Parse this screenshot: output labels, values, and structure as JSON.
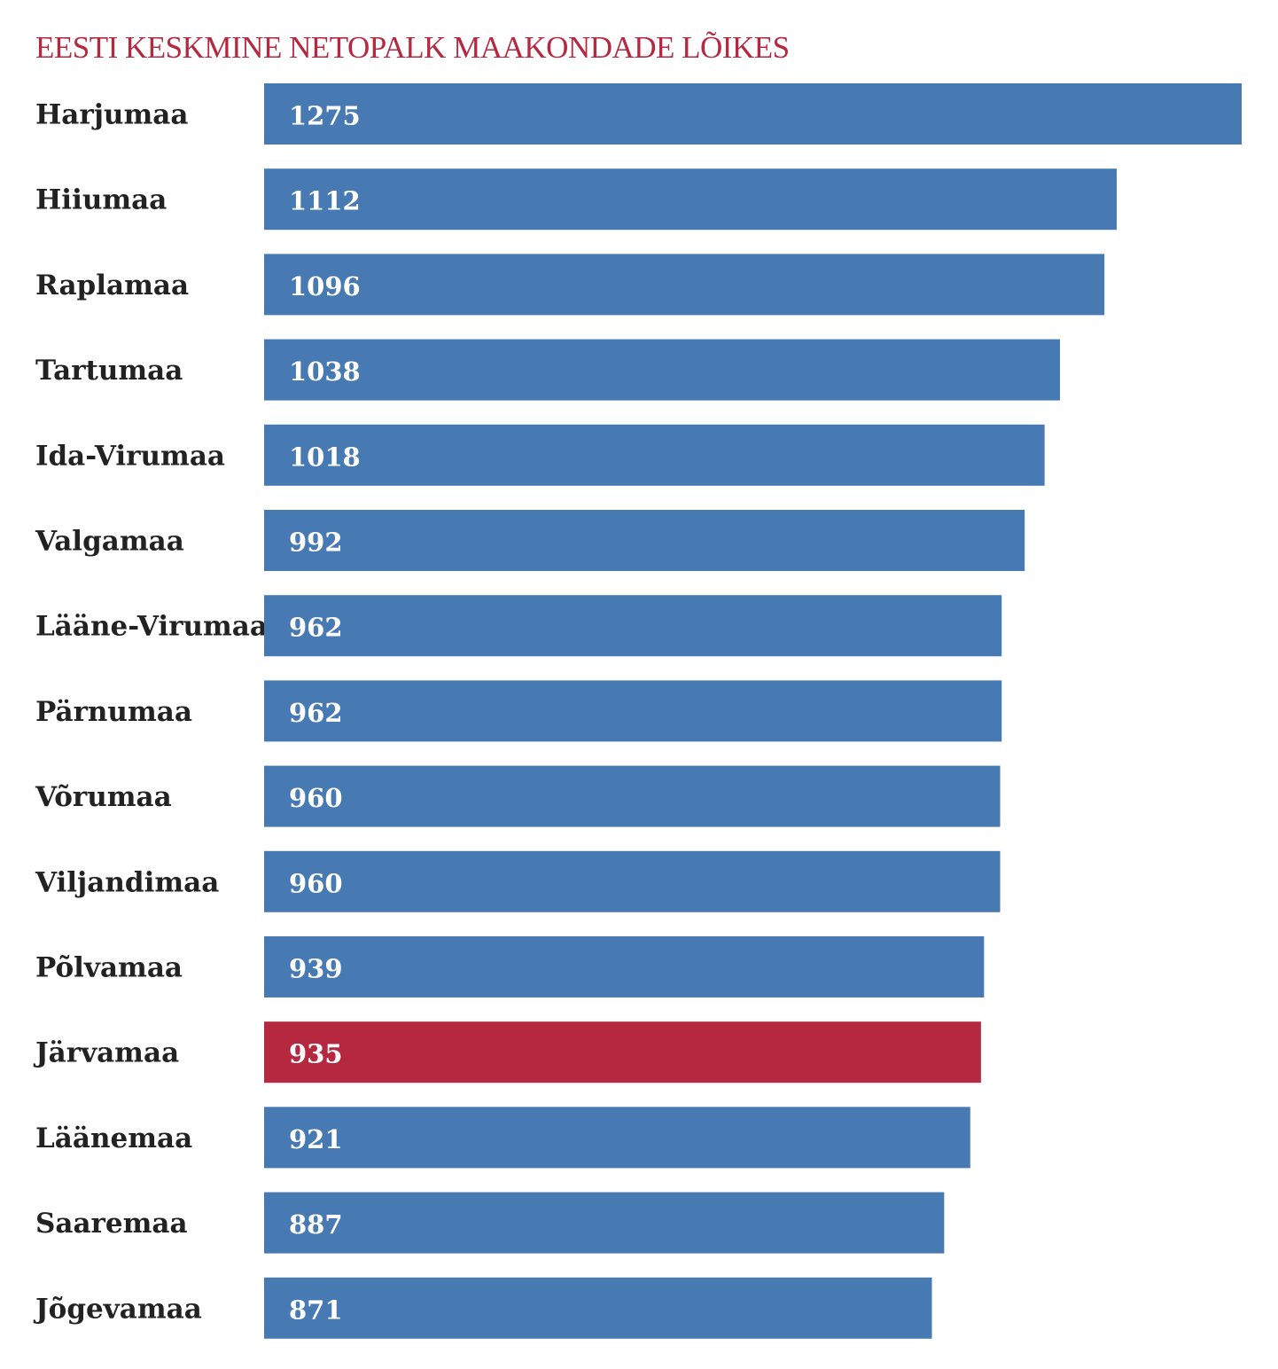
{
  "chart_data": {
    "type": "bar",
    "orientation": "horizontal",
    "title": "EESTI KESKMINE NETOPALK MAAKONDADE LÕIKES",
    "categories": [
      "Harjumaa",
      "Hiiumaa",
      "Raplamaa",
      "Tartumaa",
      "Ida-Virumaa",
      "Valgamaa",
      "Lääne-Virumaa",
      "Pärnumaa",
      "Võrumaa",
      "Viljandimaa",
      "Põlvamaa",
      "Järvamaa",
      "Läänemaa",
      "Saaremaa",
      "Jõgevamaa"
    ],
    "values": [
      1275,
      1112,
      1096,
      1038,
      1018,
      992,
      962,
      962,
      960,
      960,
      939,
      935,
      921,
      887,
      871
    ],
    "data_labels": [
      "1275",
      "1112",
      "1096",
      "1038",
      "1018",
      "992",
      "962",
      "962",
      "960",
      "960",
      "939",
      "935",
      "921",
      "887",
      "871"
    ],
    "highlight_category": "Järvamaa",
    "xlim": [
      0,
      1275
    ],
    "axes_visible": false,
    "grid": false,
    "legend": "none"
  },
  "colors": {
    "title": "#b5283f",
    "bar": "#4779b3",
    "highlight_bar": "#b5283f",
    "category_text": "#222222",
    "value_text": "#ffffff"
  }
}
